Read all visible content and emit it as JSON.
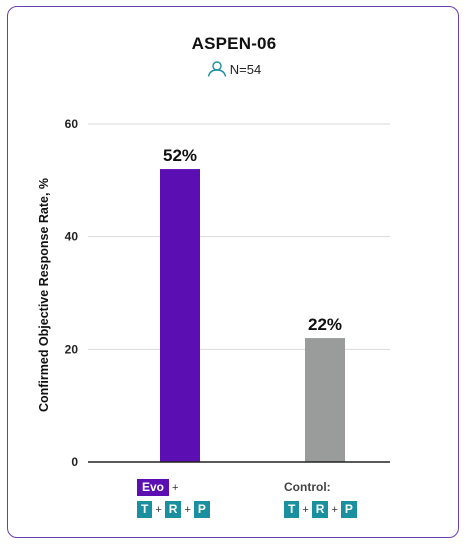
{
  "title": "ASPEN-06",
  "sample": "N=54",
  "colors": {
    "evo": "#5b0fb3",
    "control": "#9a9c9c",
    "tag_teal": "#1a8fa0",
    "border": "#6a3fb5"
  },
  "chart_data": {
    "type": "bar",
    "ylabel": "Confirmed Objective Response Rate, %",
    "ylim": [
      0,
      60
    ],
    "yticks": [
      0,
      20,
      40,
      60
    ],
    "grid": true,
    "categories": [
      "Evo + T + R + P",
      "Control: T + R + P"
    ],
    "values": [
      52,
      22
    ],
    "data_labels": [
      "52%",
      "22%"
    ]
  },
  "labels": {
    "evo": "Evo",
    "plus": "+",
    "t": "T",
    "r": "R",
    "p": "P",
    "control": "Control:"
  }
}
